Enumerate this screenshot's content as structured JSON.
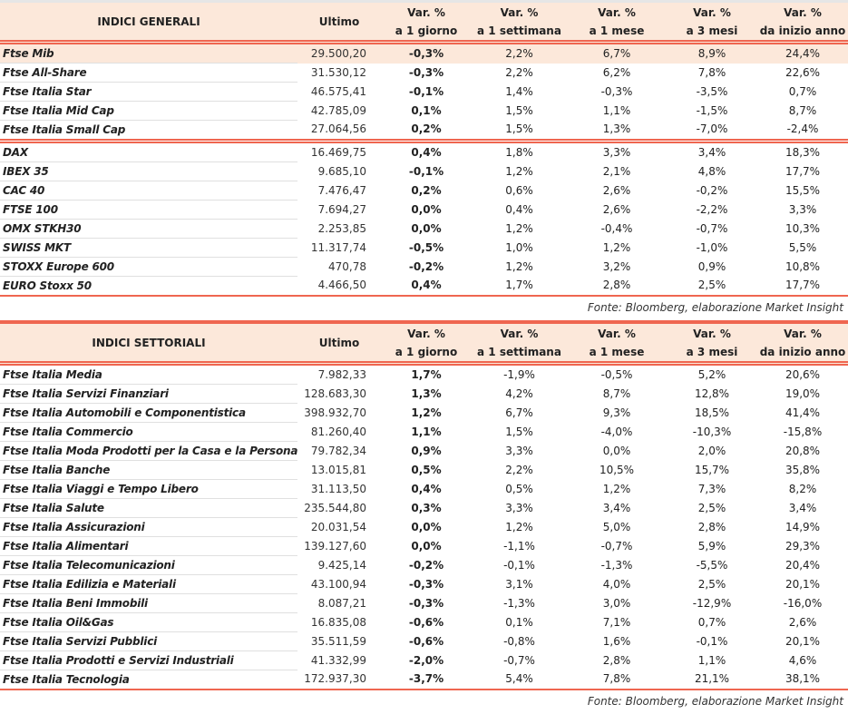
{
  "headers": {
    "ultimo": "Ultimo",
    "var": "Var. %",
    "d1": "a 1 giorno",
    "w1": "a 1 settimana",
    "m1": "a 1 mese",
    "m3": "a 3 mesi",
    "ytd": "da inizio anno"
  },
  "general": {
    "title": "INDICI GENERALI",
    "source": "Fonte: Bloomberg, elaborazione Market Insight",
    "rows": [
      [
        "Ftse Mib",
        "29.500,20",
        "-0,3%",
        "2,2%",
        "6,7%",
        "8,9%",
        "24,4%"
      ],
      [
        "Ftse All-Share",
        "31.530,12",
        "-0,3%",
        "2,2%",
        "6,2%",
        "7,8%",
        "22,6%"
      ],
      [
        "Ftse Italia Star",
        "46.575,41",
        "-0,1%",
        "1,4%",
        "-0,3%",
        "-3,5%",
        "0,7%"
      ],
      [
        "Ftse Italia Mid Cap",
        "42.785,09",
        "0,1%",
        "1,5%",
        "1,1%",
        "-1,5%",
        "8,7%"
      ],
      [
        "Ftse Italia Small Cap",
        "27.064,56",
        "0,2%",
        "1,5%",
        "1,3%",
        "-7,0%",
        "-2,4%"
      ],
      [
        "DAX",
        "16.469,75",
        "0,4%",
        "1,8%",
        "3,3%",
        "3,4%",
        "18,3%"
      ],
      [
        "IBEX 35",
        "9.685,10",
        "-0,1%",
        "1,2%",
        "2,1%",
        "4,8%",
        "17,7%"
      ],
      [
        "CAC 40",
        "7.476,47",
        "0,2%",
        "0,6%",
        "2,6%",
        "-0,2%",
        "15,5%"
      ],
      [
        "FTSE 100",
        "7.694,27",
        "0,0%",
        "0,4%",
        "2,6%",
        "-2,2%",
        "3,3%"
      ],
      [
        "OMX STKH30",
        "2.253,85",
        "0,0%",
        "1,2%",
        "-0,4%",
        "-0,7%",
        "10,3%"
      ],
      [
        "SWISS MKT",
        "11.317,74",
        "-0,5%",
        "1,0%",
        "1,2%",
        "-1,0%",
        "5,5%"
      ],
      [
        "STOXX Europe 600",
        "470,78",
        "-0,2%",
        "1,2%",
        "3,2%",
        "0,9%",
        "10,8%"
      ],
      [
        "EURO Stoxx 50",
        "4.466,50",
        "0,4%",
        "1,7%",
        "2,8%",
        "2,5%",
        "17,7%"
      ]
    ]
  },
  "sector": {
    "title": "INDICI SETTORIALI",
    "source": "Fonte: Bloomberg, elaborazione Market Insight",
    "rows": [
      [
        "Ftse Italia Media",
        "7.982,33",
        "1,7%",
        "-1,9%",
        "-0,5%",
        "5,2%",
        "20,6%"
      ],
      [
        "Ftse Italia Servizi Finanziari",
        "128.683,30",
        "1,3%",
        "4,2%",
        "8,7%",
        "12,8%",
        "19,0%"
      ],
      [
        "Ftse Italia Automobili e Componentistica",
        "398.932,70",
        "1,2%",
        "6,7%",
        "9,3%",
        "18,5%",
        "41,4%"
      ],
      [
        "Ftse Italia Commercio",
        "81.260,40",
        "1,1%",
        "1,5%",
        "-4,0%",
        "-10,3%",
        "-15,8%"
      ],
      [
        "Ftse Italia Moda Prodotti per la Casa e la Persona",
        "79.782,34",
        "0,9%",
        "3,3%",
        "0,0%",
        "2,0%",
        "20,8%"
      ],
      [
        "Ftse Italia Banche",
        "13.015,81",
        "0,5%",
        "2,2%",
        "10,5%",
        "15,7%",
        "35,8%"
      ],
      [
        "Ftse Italia Viaggi e Tempo Libero",
        "31.113,50",
        "0,4%",
        "0,5%",
        "1,2%",
        "7,3%",
        "8,2%"
      ],
      [
        "Ftse Italia Salute",
        "235.544,80",
        "0,3%",
        "3,3%",
        "3,4%",
        "2,5%",
        "3,4%"
      ],
      [
        "Ftse Italia Assicurazioni",
        "20.031,54",
        "0,0%",
        "1,2%",
        "5,0%",
        "2,8%",
        "14,9%"
      ],
      [
        "Ftse Italia Alimentari",
        "139.127,60",
        "0,0%",
        "-1,1%",
        "-0,7%",
        "5,9%",
        "29,3%"
      ],
      [
        "Ftse Italia Telecomunicazioni",
        "9.425,14",
        "-0,2%",
        "-0,1%",
        "-1,3%",
        "-5,5%",
        "20,4%"
      ],
      [
        "Ftse Italia Edilizia e Materiali",
        "43.100,94",
        "-0,3%",
        "3,1%",
        "4,0%",
        "2,5%",
        "20,1%"
      ],
      [
        "Ftse Italia Beni Immobili",
        "8.087,21",
        "-0,3%",
        "-1,3%",
        "3,0%",
        "-12,9%",
        "-16,0%"
      ],
      [
        "Ftse Italia Oil&Gas",
        "16.835,08",
        "-0,6%",
        "0,1%",
        "7,1%",
        "0,7%",
        "2,6%"
      ],
      [
        "Ftse Italia Servizi Pubblici",
        "35.511,59",
        "-0,6%",
        "-0,8%",
        "1,6%",
        "-0,1%",
        "20,1%"
      ],
      [
        "Ftse Italia Prodotti e Servizi Industriali",
        "41.332,99",
        "-2,0%",
        "-0,7%",
        "2,8%",
        "1,1%",
        "4,6%"
      ],
      [
        "Ftse Italia Tecnologia",
        "172.937,30",
        "-3,7%",
        "5,4%",
        "7,8%",
        "21,1%",
        "38,1%"
      ]
    ]
  },
  "colors": {
    "accent": "#ef6650",
    "header_bg": "#fce8da"
  }
}
